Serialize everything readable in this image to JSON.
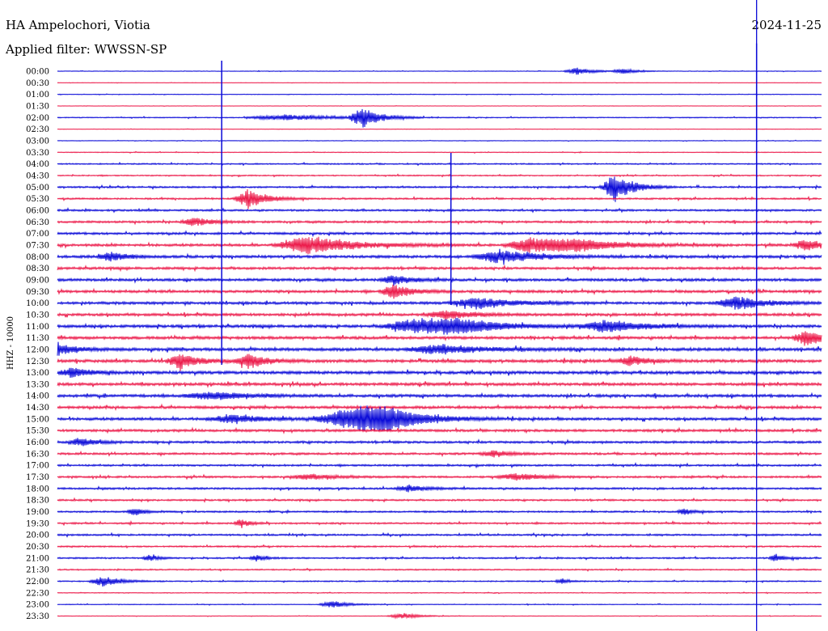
{
  "header": {
    "station": "HA Ampelochori, Viotia",
    "filter": "Applied filter: WWSSN-SP",
    "date": "2024-11-25",
    "channel": "HHZ - 10000"
  },
  "chart_data": {
    "type": "line",
    "chart_kind": "helicorder",
    "series_colors": [
      "#0a0ad8",
      "#ec1a4a"
    ],
    "time_labels": [
      "00:00",
      "00:30",
      "01:00",
      "01:30",
      "02:00",
      "02:30",
      "03:00",
      "03:30",
      "04:00",
      "04:30",
      "05:00",
      "05:30",
      "06:00",
      "06:30",
      "07:00",
      "07:30",
      "08:00",
      "08:30",
      "09:00",
      "09:30",
      "10:00",
      "10:30",
      "11:00",
      "11:30",
      "12:00",
      "12:30",
      "13:00",
      "13:30",
      "14:00",
      "14:30",
      "15:00",
      "15:30",
      "16:00",
      "16:30",
      "17:00",
      "17:30",
      "18:00",
      "18:30",
      "19:00",
      "19:30",
      "20:00",
      "20:30",
      "21:00",
      "21:30",
      "22:00",
      "22:30",
      "23:00",
      "23:30"
    ],
    "noise_level": [
      0.15,
      0.1,
      0.15,
      0.1,
      0.25,
      0.1,
      0.15,
      0.2,
      0.35,
      0.3,
      0.45,
      0.45,
      0.5,
      0.55,
      0.6,
      0.65,
      0.7,
      0.65,
      0.7,
      0.7,
      0.7,
      0.7,
      0.75,
      0.75,
      0.8,
      0.8,
      0.8,
      0.75,
      0.75,
      0.7,
      0.7,
      0.65,
      0.6,
      0.55,
      0.5,
      0.5,
      0.5,
      0.45,
      0.45,
      0.45,
      0.45,
      0.4,
      0.4,
      0.35,
      0.3,
      0.2,
      0.2,
      0.15
    ],
    "events": [
      {
        "row": 0,
        "t": 0.68,
        "amp": 0.6,
        "dur": 0.02
      },
      {
        "row": 0,
        "t": 0.74,
        "amp": 0.5,
        "dur": 0.015
      },
      {
        "row": 4,
        "t": 0.4,
        "amp": 1.8,
        "dur": 0.02
      },
      {
        "row": 4,
        "t": 0.3,
        "amp": 0.5,
        "dur": 0.06
      },
      {
        "row": 10,
        "t": 0.73,
        "amp": 2.6,
        "dur": 0.02
      },
      {
        "row": 11,
        "t": 0.25,
        "amp": 1.8,
        "dur": 0.02
      },
      {
        "row": 13,
        "t": 0.18,
        "amp": 0.8,
        "dur": 0.02
      },
      {
        "row": 15,
        "t": 0.33,
        "amp": 1.6,
        "dur": 0.05
      },
      {
        "row": 15,
        "t": 0.62,
        "amp": 1.4,
        "dur": 0.04
      },
      {
        "row": 15,
        "t": 0.68,
        "amp": 0.9,
        "dur": 0.05
      },
      {
        "row": 15,
        "t": 0.98,
        "amp": 1.0,
        "dur": 0.02
      },
      {
        "row": 16,
        "t": 0.58,
        "amp": 1.2,
        "dur": 0.04
      },
      {
        "row": 16,
        "t": 0.07,
        "amp": 0.8,
        "dur": 0.02
      },
      {
        "row": 18,
        "t": 0.44,
        "amp": 0.9,
        "dur": 0.02
      },
      {
        "row": 19,
        "t": 0.44,
        "amp": 1.2,
        "dur": 0.02
      },
      {
        "row": 20,
        "t": 0.55,
        "amp": 1.0,
        "dur": 0.04
      },
      {
        "row": 20,
        "t": 0.89,
        "amp": 1.2,
        "dur": 0.03
      },
      {
        "row": 21,
        "t": 0.51,
        "amp": 0.8,
        "dur": 0.03
      },
      {
        "row": 22,
        "t": 0.47,
        "amp": 1.3,
        "dur": 0.05
      },
      {
        "row": 22,
        "t": 0.52,
        "amp": 1.0,
        "dur": 0.05
      },
      {
        "row": 22,
        "t": 0.72,
        "amp": 1.1,
        "dur": 0.04
      },
      {
        "row": 23,
        "t": 0.98,
        "amp": 1.4,
        "dur": 0.02
      },
      {
        "row": 24,
        "t": 0.0,
        "amp": 1.2,
        "dur": 0.02
      },
      {
        "row": 24,
        "t": 0.5,
        "amp": 0.8,
        "dur": 0.05
      },
      {
        "row": 25,
        "t": 0.16,
        "amp": 1.4,
        "dur": 0.02
      },
      {
        "row": 25,
        "t": 0.25,
        "amp": 1.3,
        "dur": 0.02
      },
      {
        "row": 25,
        "t": 0.75,
        "amp": 0.8,
        "dur": 0.02
      },
      {
        "row": 26,
        "t": 0.02,
        "amp": 0.9,
        "dur": 0.02
      },
      {
        "row": 28,
        "t": 0.2,
        "amp": 0.7,
        "dur": 0.04
      },
      {
        "row": 30,
        "t": 0.37,
        "amp": 1.2,
        "dur": 0.04
      },
      {
        "row": 30,
        "t": 0.4,
        "amp": 1.5,
        "dur": 0.04
      },
      {
        "row": 30,
        "t": 0.43,
        "amp": 1.5,
        "dur": 0.04
      },
      {
        "row": 30,
        "t": 0.23,
        "amp": 0.7,
        "dur": 0.04
      },
      {
        "row": 32,
        "t": 0.03,
        "amp": 0.7,
        "dur": 0.02
      },
      {
        "row": 33,
        "t": 0.57,
        "amp": 0.6,
        "dur": 0.02
      },
      {
        "row": 35,
        "t": 0.33,
        "amp": 0.5,
        "dur": 0.03
      },
      {
        "row": 35,
        "t": 0.6,
        "amp": 0.6,
        "dur": 0.03
      },
      {
        "row": 36,
        "t": 0.46,
        "amp": 0.6,
        "dur": 0.02
      },
      {
        "row": 38,
        "t": 0.1,
        "amp": 0.8,
        "dur": 0.01
      },
      {
        "row": 38,
        "t": 0.82,
        "amp": 0.7,
        "dur": 0.01
      },
      {
        "row": 39,
        "t": 0.24,
        "amp": 0.8,
        "dur": 0.01
      },
      {
        "row": 42,
        "t": 0.12,
        "amp": 0.6,
        "dur": 0.01
      },
      {
        "row": 42,
        "t": 0.26,
        "amp": 0.6,
        "dur": 0.01
      },
      {
        "row": 42,
        "t": 0.94,
        "amp": 0.7,
        "dur": 0.01
      },
      {
        "row": 44,
        "t": 0.06,
        "amp": 0.9,
        "dur": 0.02
      },
      {
        "row": 44,
        "t": 0.66,
        "amp": 0.5,
        "dur": 0.01
      },
      {
        "row": 46,
        "t": 0.36,
        "amp": 0.6,
        "dur": 0.02
      },
      {
        "row": 47,
        "t": 0.45,
        "amp": 0.5,
        "dur": 0.02
      }
    ],
    "spikes": [
      {
        "row": 2,
        "t": 0.915,
        "amp": 9.0,
        "color": "#0a0ad8"
      },
      {
        "row": 3,
        "t": 0.215,
        "amp": 8.0,
        "color": "#0a0ad8"
      },
      {
        "row": 9,
        "t": 0.515,
        "amp": 4.0,
        "color": "#0a0ad8"
      }
    ],
    "cursor_time_fraction": 0.915
  }
}
